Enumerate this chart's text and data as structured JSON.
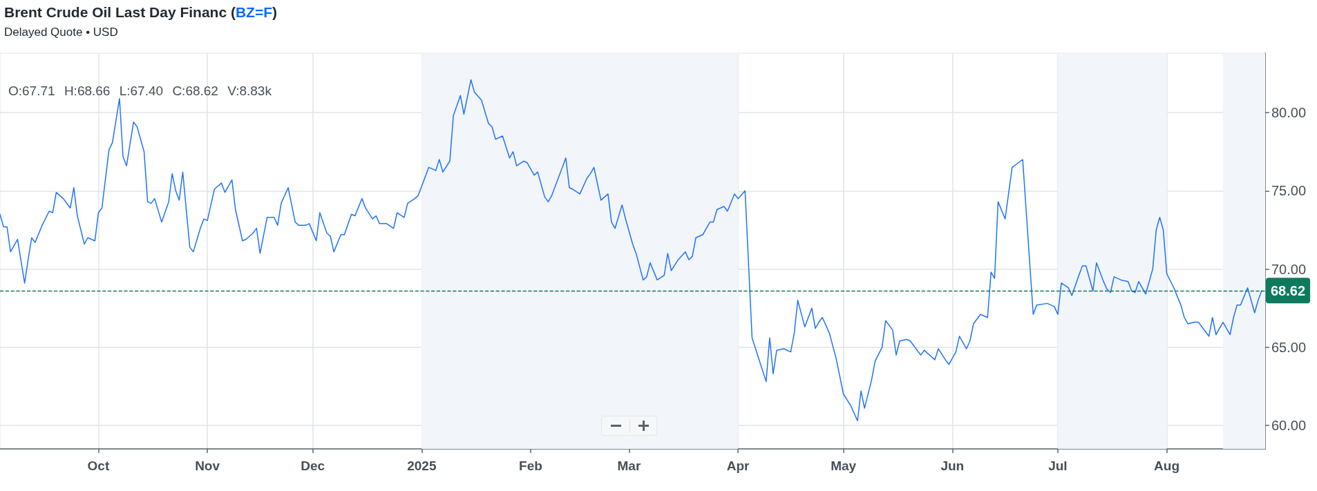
{
  "chart_data": {
    "type": "line",
    "title": "Brent Crude Oil Last Day Financ (BZ=F)",
    "subtitle": "Delayed Quote • USD",
    "annotations": [
      "O:67.71 H:68.66 L:67.40 C:68.62 V:8.83k"
    ],
    "x": [
      "2024-09-03",
      "2024-09-04",
      "2024-09-05",
      "2024-09-06",
      "2024-09-07",
      "2024-09-08",
      "2024-09-10",
      "2024-09-11",
      "2024-09-12",
      "2024-09-13",
      "2024-09-15",
      "2024-09-17",
      "2024-09-18",
      "2024-09-19",
      "2024-09-21",
      "2024-09-23",
      "2024-09-24",
      "2024-09-25",
      "2024-09-27",
      "2024-09-28",
      "2024-09-30",
      "2024-10-01",
      "2024-10-02",
      "2024-10-04",
      "2024-10-05",
      "2024-10-07",
      "2024-10-08",
      "2024-10-09",
      "2024-10-11",
      "2024-10-12",
      "2024-10-14",
      "2024-10-15",
      "2024-10-16",
      "2024-10-17",
      "2024-10-19",
      "2024-10-21",
      "2024-10-22",
      "2024-10-23",
      "2024-10-24",
      "2024-10-25",
      "2024-10-27",
      "2024-10-28",
      "2024-10-30",
      "2024-10-31",
      "2024-11-01",
      "2024-11-03",
      "2024-11-05",
      "2024-11-06",
      "2024-11-08",
      "2024-11-09",
      "2024-11-11",
      "2024-11-12",
      "2024-11-14",
      "2024-11-15",
      "2024-11-16",
      "2024-11-18",
      "2024-11-20",
      "2024-11-21",
      "2024-11-22",
      "2024-11-24",
      "2024-11-26",
      "2024-11-27",
      "2024-11-29",
      "2024-11-30",
      "2024-12-02",
      "2024-12-03",
      "2024-12-05",
      "2024-12-06",
      "2024-12-07",
      "2024-12-09",
      "2024-12-10",
      "2024-12-12",
      "2024-12-13",
      "2024-12-15",
      "2024-12-16",
      "2024-12-18",
      "2024-12-19",
      "2024-12-20",
      "2024-12-22",
      "2024-12-24",
      "2024-12-25",
      "2024-12-27",
      "2024-12-28",
      "2024-12-30",
      "2024-12-31",
      "2025-01-02",
      "2025-01-03",
      "2025-01-05",
      "2025-01-06",
      "2025-01-07",
      "2025-01-09",
      "2025-01-10",
      "2025-01-12",
      "2025-01-13",
      "2025-01-15",
      "2025-01-16",
      "2025-01-18",
      "2025-01-20",
      "2025-01-21",
      "2025-01-22",
      "2025-01-24",
      "2025-01-26",
      "2025-01-27",
      "2025-01-28",
      "2025-01-30",
      "2025-01-31",
      "2025-02-02",
      "2025-02-03",
      "2025-02-05",
      "2025-02-06",
      "2025-02-07",
      "2025-02-09",
      "2025-02-11",
      "2025-02-12",
      "2025-02-13",
      "2025-02-15",
      "2025-02-17",
      "2025-02-18",
      "2025-02-19",
      "2025-02-21",
      "2025-02-23",
      "2025-02-24",
      "2025-02-25",
      "2025-02-27",
      "2025-02-28",
      "2025-03-02",
      "2025-03-03",
      "2025-03-05",
      "2025-03-06",
      "2025-03-07",
      "2025-03-09",
      "2025-03-11",
      "2025-03-12",
      "2025-03-13",
      "2025-03-15",
      "2025-03-17",
      "2025-03-18",
      "2025-03-19",
      "2025-03-20",
      "2025-03-22",
      "2025-03-24",
      "2025-03-25",
      "2025-03-26",
      "2025-03-28",
      "2025-03-29",
      "2025-03-31",
      "2025-04-01",
      "2025-04-03",
      "2025-04-05",
      "2025-04-07",
      "2025-04-09",
      "2025-04-10",
      "2025-04-11",
      "2025-04-12",
      "2025-04-14",
      "2025-04-16",
      "2025-04-17",
      "2025-04-18",
      "2025-04-20",
      "2025-04-22",
      "2025-04-23",
      "2025-04-24",
      "2025-04-25",
      "2025-04-27",
      "2025-04-29",
      "2025-04-30",
      "2025-05-01",
      "2025-05-03",
      "2025-05-05",
      "2025-05-06",
      "2025-05-07",
      "2025-05-09",
      "2025-05-10",
      "2025-05-12",
      "2025-05-13",
      "2025-05-15",
      "2025-05-16",
      "2025-05-17",
      "2025-05-19",
      "2025-05-20",
      "2025-05-23",
      "2025-05-24",
      "2025-05-27",
      "2025-05-28",
      "2025-05-30",
      "2025-05-31",
      "2025-06-02",
      "2025-06-03",
      "2025-06-05",
      "2025-06-06",
      "2025-06-07",
      "2025-06-09",
      "2025-06-11",
      "2025-06-12",
      "2025-06-13",
      "2025-06-14",
      "2025-06-16",
      "2025-06-18",
      "2025-06-21",
      "2025-06-24",
      "2025-06-25",
      "2025-06-28",
      "2025-06-30",
      "2025-07-01",
      "2025-07-02",
      "2025-07-04",
      "2025-07-05",
      "2025-07-07",
      "2025-07-08",
      "2025-07-09",
      "2025-07-11",
      "2025-07-12",
      "2025-07-14",
      "2025-07-15",
      "2025-07-16",
      "2025-07-17",
      "2025-07-19",
      "2025-07-21",
      "2025-07-22",
      "2025-07-23",
      "2025-07-24",
      "2025-07-26",
      "2025-07-28",
      "2025-07-29",
      "2025-07-30",
      "2025-07-31",
      "2025-08-01",
      "2025-08-03",
      "2025-08-05",
      "2025-08-06",
      "2025-08-07",
      "2025-08-09",
      "2025-08-10",
      "2025-08-13",
      "2025-08-14",
      "2025-08-15",
      "2025-08-17",
      "2025-08-19",
      "2025-08-20",
      "2025-08-21",
      "2025-08-22",
      "2025-08-24",
      "2025-08-26",
      "2025-08-27",
      "2025-08-28"
    ],
    "values": [
      73.5,
      72.7,
      72.7,
      71.1,
      71.5,
      71.9,
      69.1,
      70.6,
      72.0,
      71.7,
      72.8,
      73.7,
      73.6,
      74.9,
      74.5,
      73.9,
      75.2,
      73.4,
      71.6,
      72.0,
      71.8,
      73.6,
      73.9,
      77.6,
      78.1,
      80.9,
      77.2,
      76.6,
      79.4,
      79.1,
      77.5,
      74.3,
      74.2,
      74.5,
      73.0,
      74.3,
      76.1,
      75.0,
      74.4,
      76.2,
      71.4,
      71.1,
      72.6,
      73.2,
      73.1,
      75.1,
      75.5,
      74.9,
      75.7,
      73.8,
      71.8,
      71.9,
      72.3,
      72.6,
      71.0,
      73.3,
      73.3,
      72.8,
      74.2,
      75.2,
      73.0,
      72.8,
      72.8,
      72.9,
      71.8,
      73.6,
      72.3,
      72.1,
      71.1,
      72.2,
      72.2,
      73.5,
      73.4,
      74.5,
      73.9,
      73.2,
      73.4,
      72.9,
      72.9,
      72.6,
      73.6,
      73.3,
      74.2,
      74.5,
      74.7,
      75.9,
      76.5,
      76.3,
      77.0,
      76.2,
      76.9,
      79.8,
      81.1,
      79.9,
      82.1,
      81.3,
      80.8,
      79.3,
      79.1,
      78.3,
      78.5,
      77.1,
      77.5,
      76.6,
      76.9,
      76.8,
      76.0,
      76.2,
      74.6,
      74.3,
      74.7,
      75.9,
      77.1,
      75.2,
      75.1,
      74.8,
      75.8,
      76.1,
      76.5,
      74.4,
      74.8,
      73.0,
      72.6,
      74.1,
      73.2,
      71.6,
      71.0,
      69.3,
      69.5,
      70.4,
      69.3,
      69.6,
      71.0,
      69.9,
      70.6,
      71.1,
      70.6,
      70.8,
      72.0,
      72.2,
      73.0,
      73.0,
      73.8,
      74.0,
      73.7,
      74.8,
      74.5,
      75.0,
      65.6,
      64.2,
      62.8,
      65.6,
      63.3,
      64.8,
      64.9,
      64.7,
      65.9,
      68.0,
      66.3,
      67.5,
      66.2,
      66.6,
      66.9,
      65.9,
      64.2,
      63.1,
      62.0,
      61.3,
      60.3,
      62.2,
      61.1,
      62.9,
      64.1,
      65.0,
      66.7,
      66.1,
      64.5,
      65.4,
      65.5,
      65.4,
      64.5,
      64.8,
      64.2,
      64.9,
      64.2,
      63.9,
      64.7,
      65.7,
      64.9,
      65.4,
      66.5,
      67.1,
      66.9,
      69.8,
      69.4,
      74.3,
      73.2,
      76.5,
      77.0,
      67.1,
      67.7,
      67.8,
      67.6,
      67.1,
      69.1,
      68.8,
      68.3,
      69.6,
      70.2,
      70.2,
      68.6,
      70.4,
      69.2,
      68.7,
      68.5,
      69.5,
      69.3,
      69.2,
      68.6,
      68.5,
      69.2,
      68.4,
      70.0,
      72.5,
      73.3,
      72.5,
      69.7,
      68.8,
      67.7,
      66.9,
      66.5,
      66.6,
      66.6,
      65.7,
      66.9,
      65.8,
      66.6,
      65.8,
      66.9,
      67.7,
      67.7,
      68.8,
      67.2,
      68.0,
      68.62
    ],
    "color": "#1f72ff",
    "marker": "none",
    "xlim": [
      "2024-09-03",
      "2025-08-29"
    ],
    "xticks": [
      {
        "value": "2024-10-01",
        "label": "Oct"
      },
      {
        "value": "2024-11-01",
        "label": "Nov"
      },
      {
        "value": "2024-12-01",
        "label": "Dec"
      },
      {
        "value": "2025-01-01",
        "label": "2025"
      },
      {
        "value": "2025-02-01",
        "label": "Feb"
      },
      {
        "value": "2025-03-01",
        "label": "Mar"
      },
      {
        "value": "2025-04-01",
        "label": "Apr"
      },
      {
        "value": "2025-05-01",
        "label": "May"
      },
      {
        "value": "2025-06-01",
        "label": "Jun"
      },
      {
        "value": "2025-07-01",
        "label": "Jul"
      },
      {
        "value": "2025-08-01",
        "label": "Aug"
      }
    ],
    "ylim": [
      58.5,
      83.8
    ],
    "yticks": [
      {
        "value": 60,
        "label": "60.00"
      },
      {
        "value": 65,
        "label": "65.00"
      },
      {
        "value": 70,
        "label": "70.00"
      },
      {
        "value": 75,
        "label": "75.00"
      },
      {
        "value": 80,
        "label": "80.00"
      }
    ],
    "grid": true,
    "ref_lines": [
      {
        "axis": "y",
        "value": 68.62,
        "label": "68.62",
        "color": "#0e7a5d",
        "line_style": "dashed"
      }
    ],
    "bands": [
      {
        "axis": "x",
        "from": "2025-01-01",
        "to": "2025-04-01",
        "color": "#f2f5f9"
      },
      {
        "axis": "x",
        "from": "2025-07-01",
        "to": "2025-08-01",
        "color": "#f2f5f9"
      },
      {
        "axis": "x",
        "from": "2025-08-17",
        "to": "2025-08-29",
        "color": "#f2f5f9"
      }
    ]
  }
}
